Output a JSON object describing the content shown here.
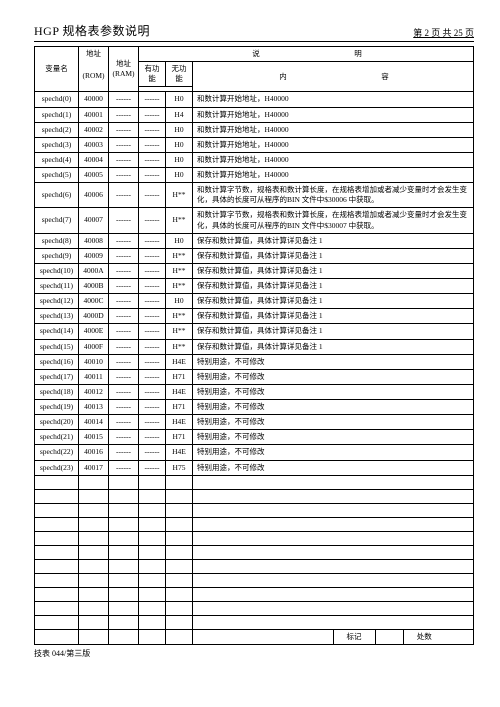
{
  "header": {
    "title": "HGP 规格表参数说明",
    "pager": "第 2 页 共 25 页"
  },
  "columns": {
    "var": "变量名",
    "rom_top": "地址",
    "rom_sub": "(ROM)",
    "ram_top": "地址",
    "ram_sub": "(RAM)",
    "desc_top": "说　　　明",
    "yes": "有功能",
    "no": "无功能",
    "content": "内　　　容"
  },
  "dashes": "------",
  "rows": [
    {
      "v": "spechd(0)",
      "rom": "40000",
      "yes": "------",
      "no": "H0",
      "c": "和数计算开始地址，H40000"
    },
    {
      "v": "spechd(1)",
      "rom": "40001",
      "yes": "------",
      "no": "H4",
      "c": "和数计算开始地址，H40000"
    },
    {
      "v": "spechd(2)",
      "rom": "40002",
      "yes": "------",
      "no": "H0",
      "c": "和数计算开始地址，H40000"
    },
    {
      "v": "spechd(3)",
      "rom": "40003",
      "yes": "------",
      "no": "H0",
      "c": "和数计算开始地址，H40000"
    },
    {
      "v": "spechd(4)",
      "rom": "40004",
      "yes": "------",
      "no": "H0",
      "c": "和数计算开始地址，H40000"
    },
    {
      "v": "spechd(5)",
      "rom": "40005",
      "yes": "------",
      "no": "H0",
      "c": "和数计算开始地址，H40000"
    },
    {
      "v": "spechd(6)",
      "rom": "40006",
      "yes": "------",
      "no": "H**",
      "c": "和数计算字节数，规格表和数计算长度，在规格表增加或者减少变量时才会发生变化，具体的长度可从程序的BIN 文件中$30006 中获取。"
    },
    {
      "v": "spechd(7)",
      "rom": "40007",
      "yes": "------",
      "no": "H**",
      "c": "和数计算字节数，规格表和数计算长度，在规格表增加或者减少变量时才会发生变化，具体的长度可从程序的BIN 文件中$30007 中获取。"
    },
    {
      "v": "spechd(8)",
      "rom": "40008",
      "yes": "------",
      "no": "H0",
      "c": "保存和数计算值，具体计算详见备注 1"
    },
    {
      "v": "spechd(9)",
      "rom": "40009",
      "yes": "------",
      "no": "H**",
      "c": "保存和数计算值，具体计算详见备注 1"
    },
    {
      "v": "spechd(10)",
      "rom": "4000A",
      "yes": "------",
      "no": "H**",
      "c": "保存和数计算值，具体计算详见备注 1"
    },
    {
      "v": "spechd(11)",
      "rom": "4000B",
      "yes": "------",
      "no": "H**",
      "c": "保存和数计算值，具体计算详见备注 1"
    },
    {
      "v": "spechd(12)",
      "rom": "4000C",
      "yes": "------",
      "no": "H0",
      "c": "保存和数计算值，具体计算详见备注 1"
    },
    {
      "v": "spechd(13)",
      "rom": "4000D",
      "yes": "------",
      "no": "H**",
      "c": "保存和数计算值，具体计算详见备注 1"
    },
    {
      "v": "spechd(14)",
      "rom": "4000E",
      "yes": "------",
      "no": "H**",
      "c": "保存和数计算值，具体计算详见备注 1"
    },
    {
      "v": "spechd(15)",
      "rom": "4000F",
      "yes": "------",
      "no": "H**",
      "c": "保存和数计算值，具体计算详见备注 1"
    },
    {
      "v": "spechd(16)",
      "rom": "40010",
      "yes": "------",
      "no": "H4E",
      "c": "特别用途，不可修改"
    },
    {
      "v": "spechd(17)",
      "rom": "40011",
      "yes": "------",
      "no": "H71",
      "c": "特别用途，不可修改"
    },
    {
      "v": "spechd(18)",
      "rom": "40012",
      "yes": "------",
      "no": "H4E",
      "c": "特别用途，不可修改"
    },
    {
      "v": "spechd(19)",
      "rom": "40013",
      "yes": "------",
      "no": "H71",
      "c": "特别用途，不可修改"
    },
    {
      "v": "spechd(20)",
      "rom": "40014",
      "yes": "------",
      "no": "H4E",
      "c": "特别用途，不可修改"
    },
    {
      "v": "spechd(21)",
      "rom": "40015",
      "yes": "------",
      "no": "H71",
      "c": "特别用途，不可修改"
    },
    {
      "v": "spechd(22)",
      "rom": "40016",
      "yes": "------",
      "no": "H4E",
      "c": "特别用途，不可修改"
    },
    {
      "v": "spechd(23)",
      "rom": "40017",
      "yes": "------",
      "no": "H75",
      "c": "特别用途，不可修改"
    }
  ],
  "blank_count": 11,
  "footer": {
    "tag": "标记",
    "loc": "处数",
    "note": "技表 044/第三版"
  }
}
